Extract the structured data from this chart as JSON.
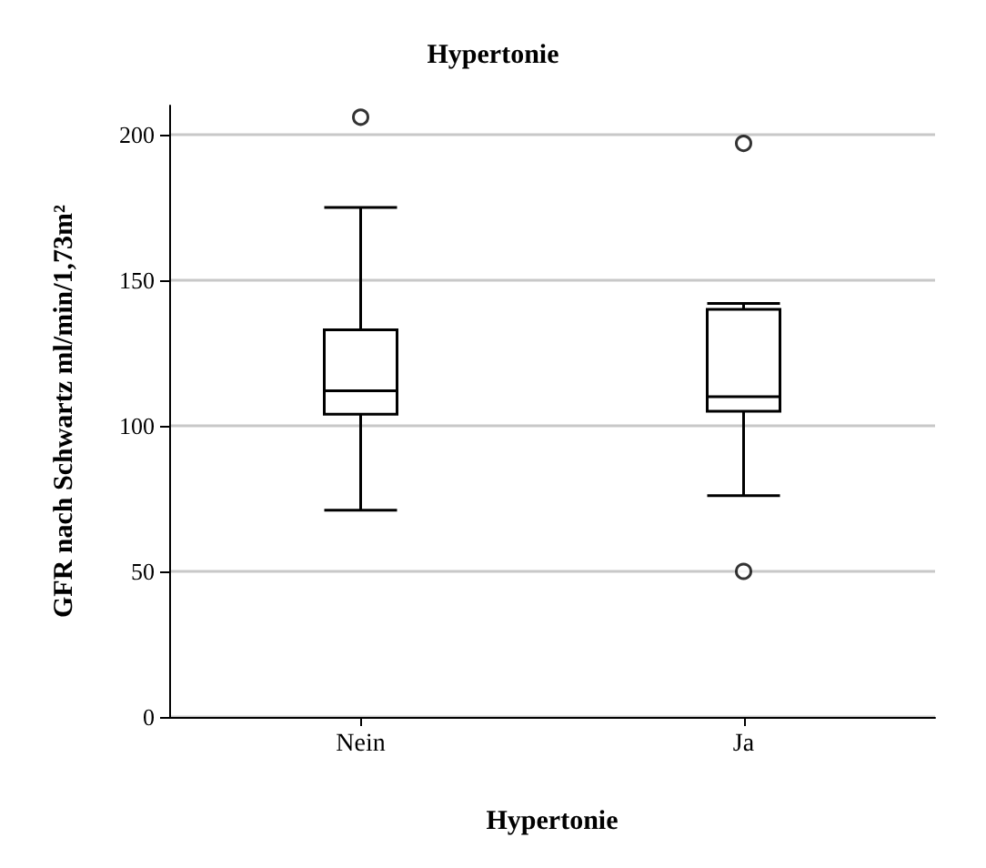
{
  "chart_data": {
    "type": "box",
    "title": "Hypertonie",
    "xlabel": "Hypertonie",
    "ylabel": "GFR nach Schwartz ml/min/1,73m²",
    "categories": [
      "Nein",
      "Ja"
    ],
    "series": [
      {
        "color": "#000000",
        "boxes": [
          {
            "low": 71,
            "q1": 104,
            "median": 112,
            "q3": 133,
            "high": 175,
            "outliers": [
              206
            ]
          },
          {
            "low": 76,
            "q1": 105,
            "median": 110,
            "q3": 140,
            "high": 142,
            "outliers": [
              197,
              50
            ]
          }
        ]
      }
    ],
    "ylim": [
      0,
      210
    ],
    "yticks": [
      0,
      50,
      100,
      150,
      200
    ],
    "grid": "y",
    "marker": "circle"
  }
}
